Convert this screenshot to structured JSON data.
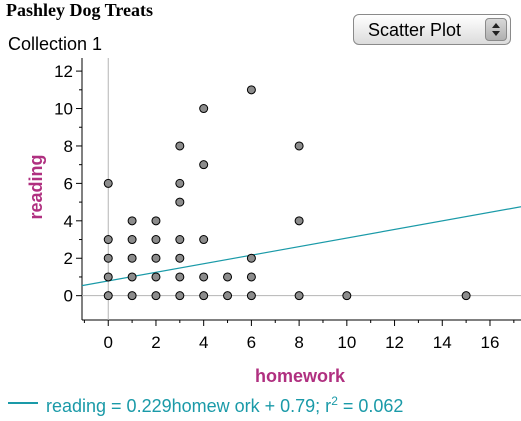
{
  "header": {
    "title": "Pashley Dog Treats"
  },
  "collection": {
    "name": "Collection 1"
  },
  "plot_type": {
    "selected": "Scatter Plot"
  },
  "equation": {
    "text": "reading = 0.229homew ork + 0.79; r",
    "exponent": "2",
    "tail": " = 0.062"
  },
  "chart_data": {
    "type": "scatter",
    "xlabel": "homework",
    "ylabel": "reading",
    "xlim": [
      -1.1,
      17.3
    ],
    "ylim": [
      -1.3,
      12.7
    ],
    "xticks": [
      0,
      2,
      4,
      6,
      8,
      10,
      12,
      14,
      16
    ],
    "yticks": [
      0,
      2,
      4,
      6,
      8,
      10,
      12
    ],
    "grid": false,
    "colors": {
      "point": "#8c8c8c",
      "axis_label": "#b03080",
      "fit": "#1a9aa8"
    },
    "points": [
      [
        0,
        0
      ],
      [
        0,
        1
      ],
      [
        0,
        2
      ],
      [
        0,
        3
      ],
      [
        0,
        6
      ],
      [
        1,
        0
      ],
      [
        1,
        1
      ],
      [
        1,
        2
      ],
      [
        1,
        3
      ],
      [
        1,
        4
      ],
      [
        2,
        0
      ],
      [
        2,
        1
      ],
      [
        2,
        2
      ],
      [
        2,
        3
      ],
      [
        2,
        4
      ],
      [
        3,
        0
      ],
      [
        3,
        1
      ],
      [
        3,
        2
      ],
      [
        3,
        3
      ],
      [
        3,
        5
      ],
      [
        3,
        6
      ],
      [
        3,
        8
      ],
      [
        4,
        0
      ],
      [
        4,
        1
      ],
      [
        4,
        3
      ],
      [
        4,
        7
      ],
      [
        4,
        10
      ],
      [
        5,
        0
      ],
      [
        5,
        1
      ],
      [
        6,
        0
      ],
      [
        6,
        1
      ],
      [
        6,
        2
      ],
      [
        6,
        11
      ],
      [
        8,
        0
      ],
      [
        8,
        4
      ],
      [
        8,
        8
      ],
      [
        10,
        0
      ],
      [
        15,
        0
      ]
    ],
    "fit": {
      "slope": 0.229,
      "intercept": 0.79,
      "r2": 0.062
    }
  }
}
